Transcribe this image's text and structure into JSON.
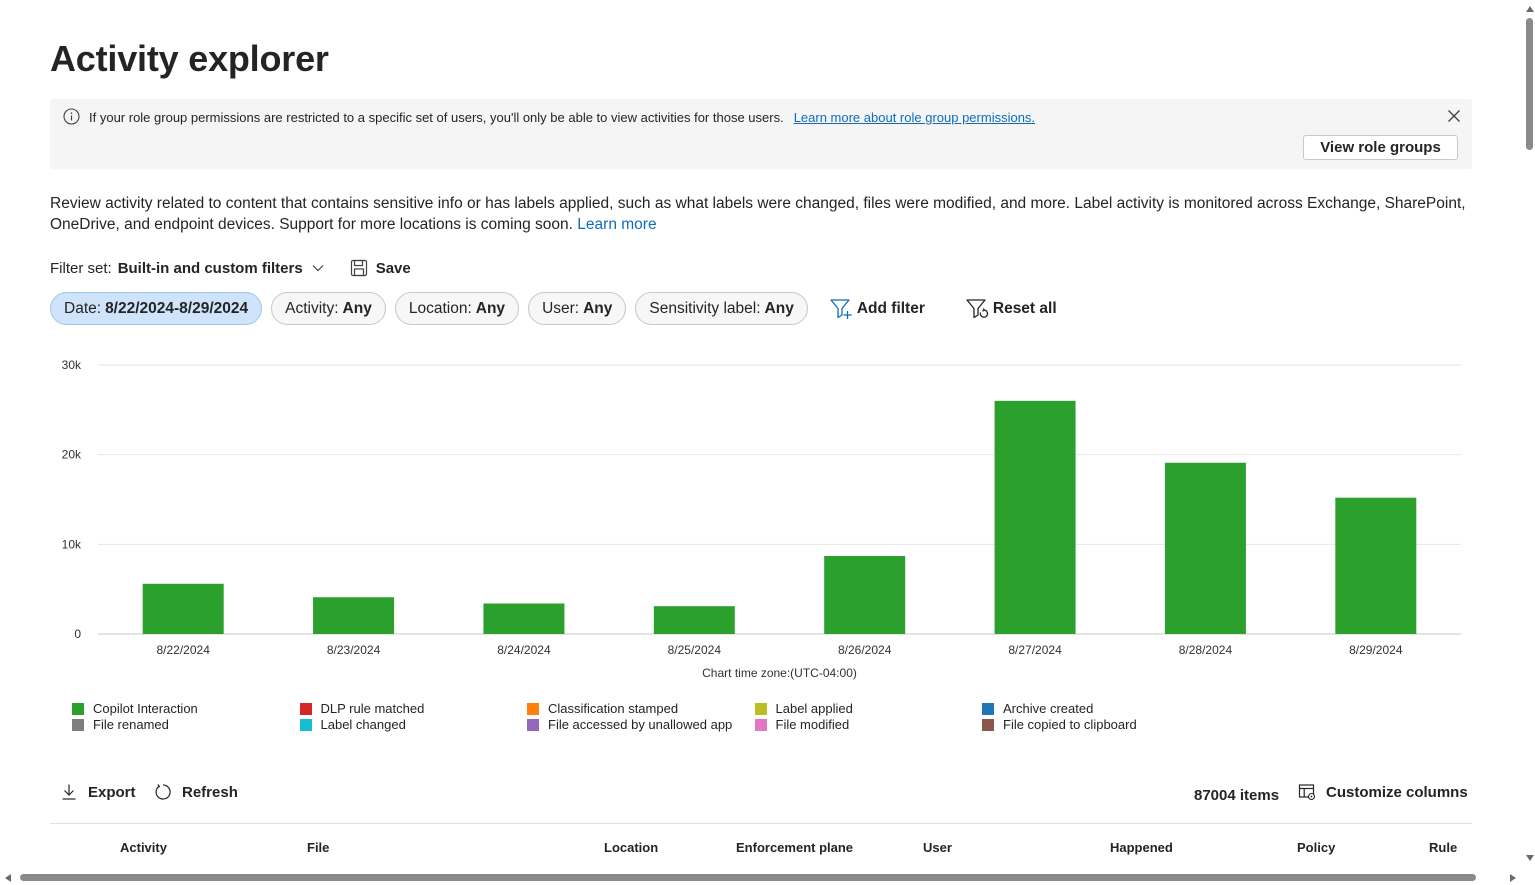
{
  "page": {
    "title": "Activity explorer"
  },
  "banner": {
    "text": "If your role group permissions are restricted to a specific set of users, you'll only be able to view activities for those users.",
    "link": "Learn more about role group permissions.",
    "button": "View role groups",
    "icons": {
      "info": "info-icon",
      "close": "close-icon"
    }
  },
  "description": {
    "text": "Review activity related to content that contains sensitive info or has labels applied, such as what labels were changed, files were modified, and more. Label activity is monitored across Exchange, SharePoint, OneDrive, and endpoint devices. Support for more locations is coming soon.",
    "link": "Learn more"
  },
  "filter_set": {
    "label": "Filter set:",
    "value": "Built-in and custom filters",
    "save": "Save"
  },
  "filters": {
    "chips": [
      {
        "label": "Date:",
        "value": "8/22/2024-8/29/2024"
      },
      {
        "label": "Activity:",
        "value": "Any"
      },
      {
        "label": "Location:",
        "value": "Any"
      },
      {
        "label": "User:",
        "value": "Any"
      },
      {
        "label": "Sensitivity label:",
        "value": "Any"
      }
    ],
    "add_filter": "Add filter",
    "reset_all": "Reset all"
  },
  "chart_data": {
    "type": "bar",
    "categories": [
      "8/22/2024",
      "8/23/2024",
      "8/24/2024",
      "8/25/2024",
      "8/26/2024",
      "8/27/2024",
      "8/28/2024",
      "8/29/2024"
    ],
    "series": [
      {
        "name": "Copilot Interaction",
        "color": "#2ca02c",
        "values": [
          5600,
          4100,
          3400,
          3100,
          8700,
          26000,
          19100,
          15200
        ]
      }
    ],
    "yticks": [
      "0",
      "10k",
      "20k",
      "30k"
    ],
    "ylim": [
      0,
      30000
    ],
    "xlabel": "Chart time zone:(UTC-04:00)",
    "ylabel": "",
    "grid": true,
    "legend_position": "bottom"
  },
  "legend": [
    {
      "label": "Copilot Interaction",
      "color": "#2ca02c"
    },
    {
      "label": "File renamed",
      "color": "#7f7f7f"
    },
    {
      "label": "DLP rule matched",
      "color": "#d62728"
    },
    {
      "label": "Label changed",
      "color": "#17becf"
    },
    {
      "label": "Classification stamped",
      "color": "#ff7f0e"
    },
    {
      "label": "File accessed by unallowed app",
      "color": "#9467bd"
    },
    {
      "label": "Label applied",
      "color": "#bcbd22"
    },
    {
      "label": "File modified",
      "color": "#e377c2"
    },
    {
      "label": "Archive created",
      "color": "#1f77b4"
    },
    {
      "label": "File copied to clipboard",
      "color": "#8c564b"
    }
  ],
  "toolbar": {
    "export": "Export",
    "refresh": "Refresh",
    "count": "87004 items",
    "customize": "Customize columns"
  },
  "table": {
    "columns": [
      "Activity",
      "File",
      "Location",
      "Enforcement plane",
      "User",
      "Happened",
      "Policy",
      "Rule"
    ]
  }
}
